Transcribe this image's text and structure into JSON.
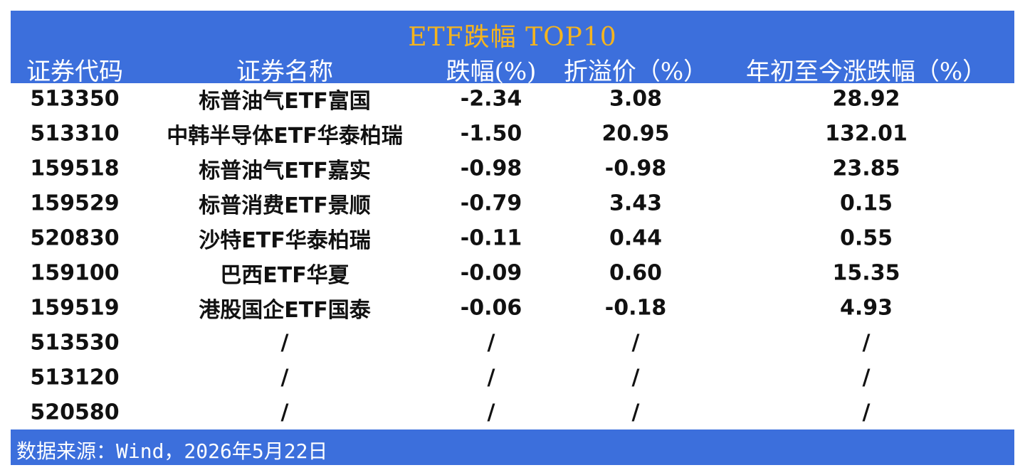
{
  "header": {
    "title": "ETF跌幅 TOP10"
  },
  "table": {
    "columns": [
      "证券代码",
      "证券名称",
      "跌幅(%)",
      "折溢价（%）",
      "年初至今涨跌幅（%）"
    ],
    "rows": [
      [
        "513350",
        "标普油气ETF富国",
        "-2.34",
        "3.08",
        "28.92"
      ],
      [
        "513310",
        "中韩半导体ETF华泰柏瑞",
        "-1.50",
        "20.95",
        "132.01"
      ],
      [
        "159518",
        "标普油气ETF嘉实",
        "-0.98",
        "-0.98",
        "23.85"
      ],
      [
        "159529",
        "标普消费ETF景顺",
        "-0.79",
        "3.43",
        "0.15"
      ],
      [
        "520830",
        "沙特ETF华泰柏瑞",
        "-0.11",
        "0.44",
        "0.55"
      ],
      [
        "159100",
        "巴西ETF华夏",
        "-0.09",
        "0.60",
        "15.35"
      ],
      [
        "159519",
        "港股国企ETF国泰",
        "-0.06",
        "-0.18",
        "4.93"
      ],
      [
        "513530",
        "/",
        "/",
        "/",
        "/"
      ],
      [
        "513120",
        "/",
        "/",
        "/",
        "/"
      ],
      [
        "520580",
        "/",
        "/",
        "/",
        "/"
      ]
    ]
  },
  "footer": {
    "source": "数据来源：Wind，2026年5月22日"
  }
}
